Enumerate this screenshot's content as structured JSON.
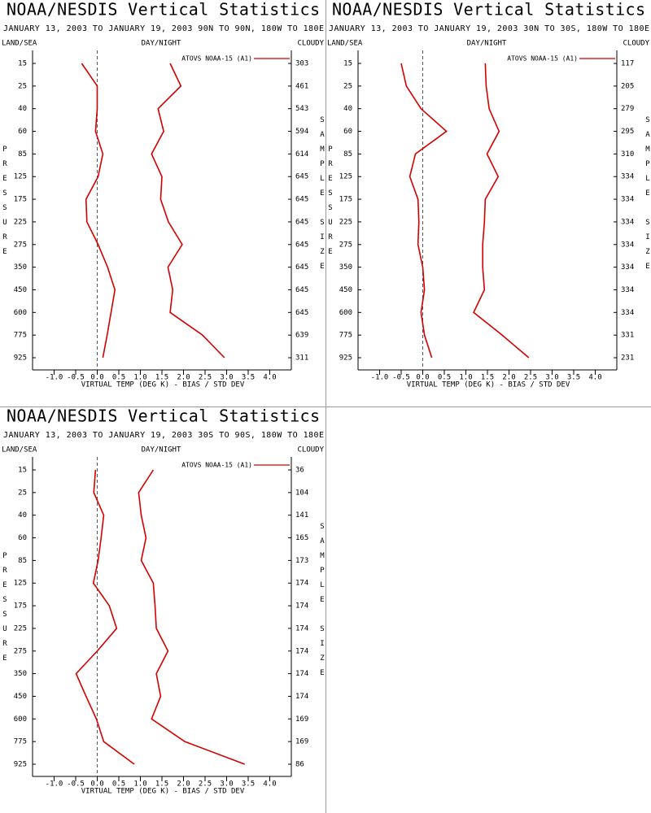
{
  "chart_data": [
    {
      "type": "line",
      "title": "NOAA/NESDIS Vertical Statistics",
      "subtitle": "JANUARY 13, 2003 TO JANUARY 19, 2003  90N TO 90N, 180W TO 180E",
      "left_label": "LAND/SEA",
      "center_label": "DAY/NIGHT",
      "right_label": "CLOUDY",
      "y_label": "PRESSURE",
      "y2_label": "SAMPLE SIZE",
      "x_label": "VIRTUAL TEMP (DEG K) - BIAS / STD DEV",
      "categories": [
        15,
        25,
        40,
        60,
        85,
        125,
        175,
        225,
        275,
        350,
        450,
        600,
        775,
        925
      ],
      "sample_sizes": [
        303,
        461,
        543,
        594,
        614,
        645,
        645,
        645,
        645,
        645,
        645,
        645,
        639,
        311
      ],
      "series": [
        {
          "name": "ATOVS NOAA-15 (A1)",
          "color": "#d40000",
          "values": [
            -0.36,
            0.0,
            0.0,
            -0.04,
            0.13,
            0.02,
            -0.26,
            -0.24,
            0.02,
            0.24,
            0.41,
            0.32,
            0.23,
            0.13
          ]
        },
        {
          "color": "#d40000",
          "values": [
            1.69,
            1.94,
            1.41,
            1.54,
            1.26,
            1.5,
            1.47,
            1.65,
            1.97,
            1.64,
            1.75,
            1.69,
            2.44,
            2.95
          ]
        }
      ],
      "xlim": [
        -1.5,
        4.5
      ],
      "xticks": [
        {
          "value": -1.0,
          "label": "-1.0"
        },
        {
          "value": -0.5,
          "label": "-0.5"
        },
        {
          "value": 0,
          "label": "0.0"
        },
        {
          "value": 0.5,
          "label": "0.5"
        },
        {
          "value": 1.0,
          "label": "1.0"
        },
        {
          "value": 1.5,
          "label": "1.5"
        },
        {
          "value": 2.0,
          "label": "2.0"
        },
        {
          "value": 2.5,
          "label": "2.5"
        },
        {
          "value": 3.0,
          "label": "3.0"
        },
        {
          "value": 3.5,
          "label": "3.5"
        },
        {
          "value": 4.0,
          "label": "4.0"
        }
      ]
    },
    {
      "type": "line",
      "title": "NOAA/NESDIS Vertical Statistics",
      "subtitle": "JANUARY 13, 2003 TO JANUARY 19, 2003  30N TO 30S, 180W TO 180E",
      "left_label": "LAND/SEA",
      "center_label": "DAY/NIGHT",
      "right_label": "CLOUDY",
      "y_label": "PRESSURE",
      "y2_label": "SAMPLE SIZE",
      "x_label": "VIRTUAL TEMP (DEG K) - BIAS / STD DEV",
      "categories": [
        15,
        25,
        40,
        60,
        85,
        125,
        175,
        225,
        275,
        350,
        450,
        600,
        775,
        925
      ],
      "sample_sizes": [
        117,
        205,
        279,
        295,
        310,
        334,
        334,
        334,
        334,
        334,
        334,
        334,
        331,
        231
      ],
      "series": [
        {
          "name": "ATOVS NOAA-15 (A1)",
          "color": "#d40000",
          "values": [
            -0.5,
            -0.38,
            -0.04,
            0.55,
            -0.17,
            -0.3,
            -0.11,
            -0.09,
            -0.11,
            0.0,
            0.04,
            -0.04,
            0.04,
            0.21
          ]
        },
        {
          "color": "#d40000",
          "values": [
            1.45,
            1.47,
            1.54,
            1.77,
            1.49,
            1.75,
            1.45,
            1.43,
            1.39,
            1.39,
            1.43,
            1.18,
            1.84,
            2.46
          ]
        }
      ],
      "xlim": [
        -1.5,
        4.5
      ],
      "xticks": [
        {
          "value": -1.0,
          "label": "-1.0"
        },
        {
          "value": -0.5,
          "label": "-0.5"
        },
        {
          "value": 0,
          "label": "0.0"
        },
        {
          "value": 0.5,
          "label": "0.5"
        },
        {
          "value": 1.0,
          "label": "1.0"
        },
        {
          "value": 1.5,
          "label": "1.5"
        },
        {
          "value": 2.0,
          "label": "2.0"
        },
        {
          "value": 2.5,
          "label": "2.5"
        },
        {
          "value": 3.0,
          "label": "3.0"
        },
        {
          "value": 3.5,
          "label": "3.5"
        },
        {
          "value": 4.0,
          "label": "4.0"
        }
      ]
    },
    {
      "type": "line",
      "title": "NOAA/NESDIS Vertical Statistics",
      "subtitle": "JANUARY 13, 2003 TO JANUARY 19, 2003  30S TO 90S, 180W TO 180E",
      "left_label": "LAND/SEA",
      "center_label": "DAY/NIGHT",
      "right_label": "CLOUDY",
      "y_label": "PRESSURE",
      "y2_label": "SAMPLE SIZE",
      "x_label": "VIRTUAL TEMP (DEG K) - BIAS / STD DEV",
      "categories": [
        15,
        25,
        40,
        60,
        85,
        125,
        175,
        225,
        275,
        350,
        450,
        600,
        775,
        925
      ],
      "sample_sizes": [
        36,
        104,
        141,
        165,
        173,
        174,
        174,
        174,
        174,
        174,
        174,
        169,
        169,
        86
      ],
      "series": [
        {
          "name": "ATOVS NOAA-15 (A1)",
          "color": "#d40000",
          "values": [
            -0.04,
            -0.08,
            0.15,
            0.09,
            0.02,
            -0.09,
            0.28,
            0.45,
            0.0,
            -0.49,
            -0.26,
            -0.02,
            0.15,
            0.86
          ]
        },
        {
          "color": "#d40000",
          "values": [
            1.3,
            0.96,
            1.02,
            1.13,
            1.02,
            1.3,
            1.34,
            1.37,
            1.64,
            1.37,
            1.47,
            1.26,
            2.03,
            3.42
          ]
        }
      ],
      "xlim": [
        -1.5,
        4.5
      ],
      "xticks": [
        {
          "value": -1.0,
          "label": "-1.0"
        },
        {
          "value": -0.5,
          "label": "-0.5"
        },
        {
          "value": 0,
          "label": "0.0"
        },
        {
          "value": 0.5,
          "label": "0.5"
        },
        {
          "value": 1.0,
          "label": "1.0"
        },
        {
          "value": 1.5,
          "label": "1.5"
        },
        {
          "value": 2.0,
          "label": "2.0"
        },
        {
          "value": 2.5,
          "label": "2.5"
        },
        {
          "value": 3.0,
          "label": "3.0"
        },
        {
          "value": 3.5,
          "label": "3.5"
        },
        {
          "value": 4.0,
          "label": "4.0"
        }
      ]
    }
  ]
}
